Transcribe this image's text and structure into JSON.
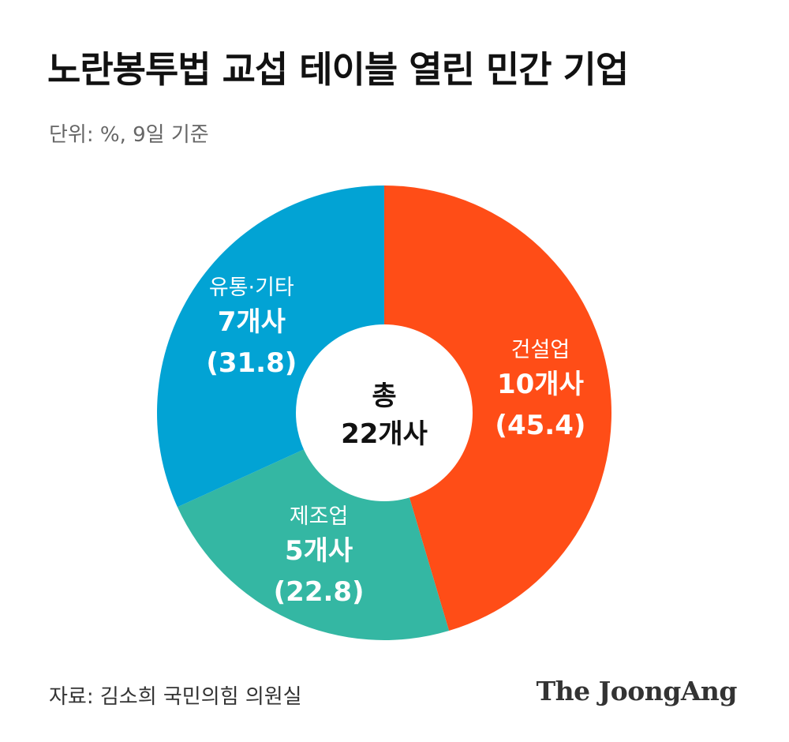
{
  "title": "노란봉투법 교섭 테이블 열린 민간 기업",
  "unit_note": "단위: %, 9일 기준",
  "source": "자료: 김소희 국민의힘 의원실",
  "logo": "The JoongAng",
  "chart_data": {
    "type": "pie",
    "variant": "donut",
    "center_label": [
      "총",
      "22개사"
    ],
    "slices": [
      {
        "name": "건설업",
        "count_label": "10개사",
        "value": 45.4,
        "value_label": "(45.4)",
        "color": "#FF4D17"
      },
      {
        "name": "제조업",
        "count_label": "5개사",
        "value": 22.8,
        "value_label": "(22.8)",
        "color": "#34B7A3"
      },
      {
        "name": "유통·기타",
        "count_label": "7개사",
        "value": 31.8,
        "value_label": "(31.8)",
        "color": "#02A3D4"
      }
    ]
  }
}
